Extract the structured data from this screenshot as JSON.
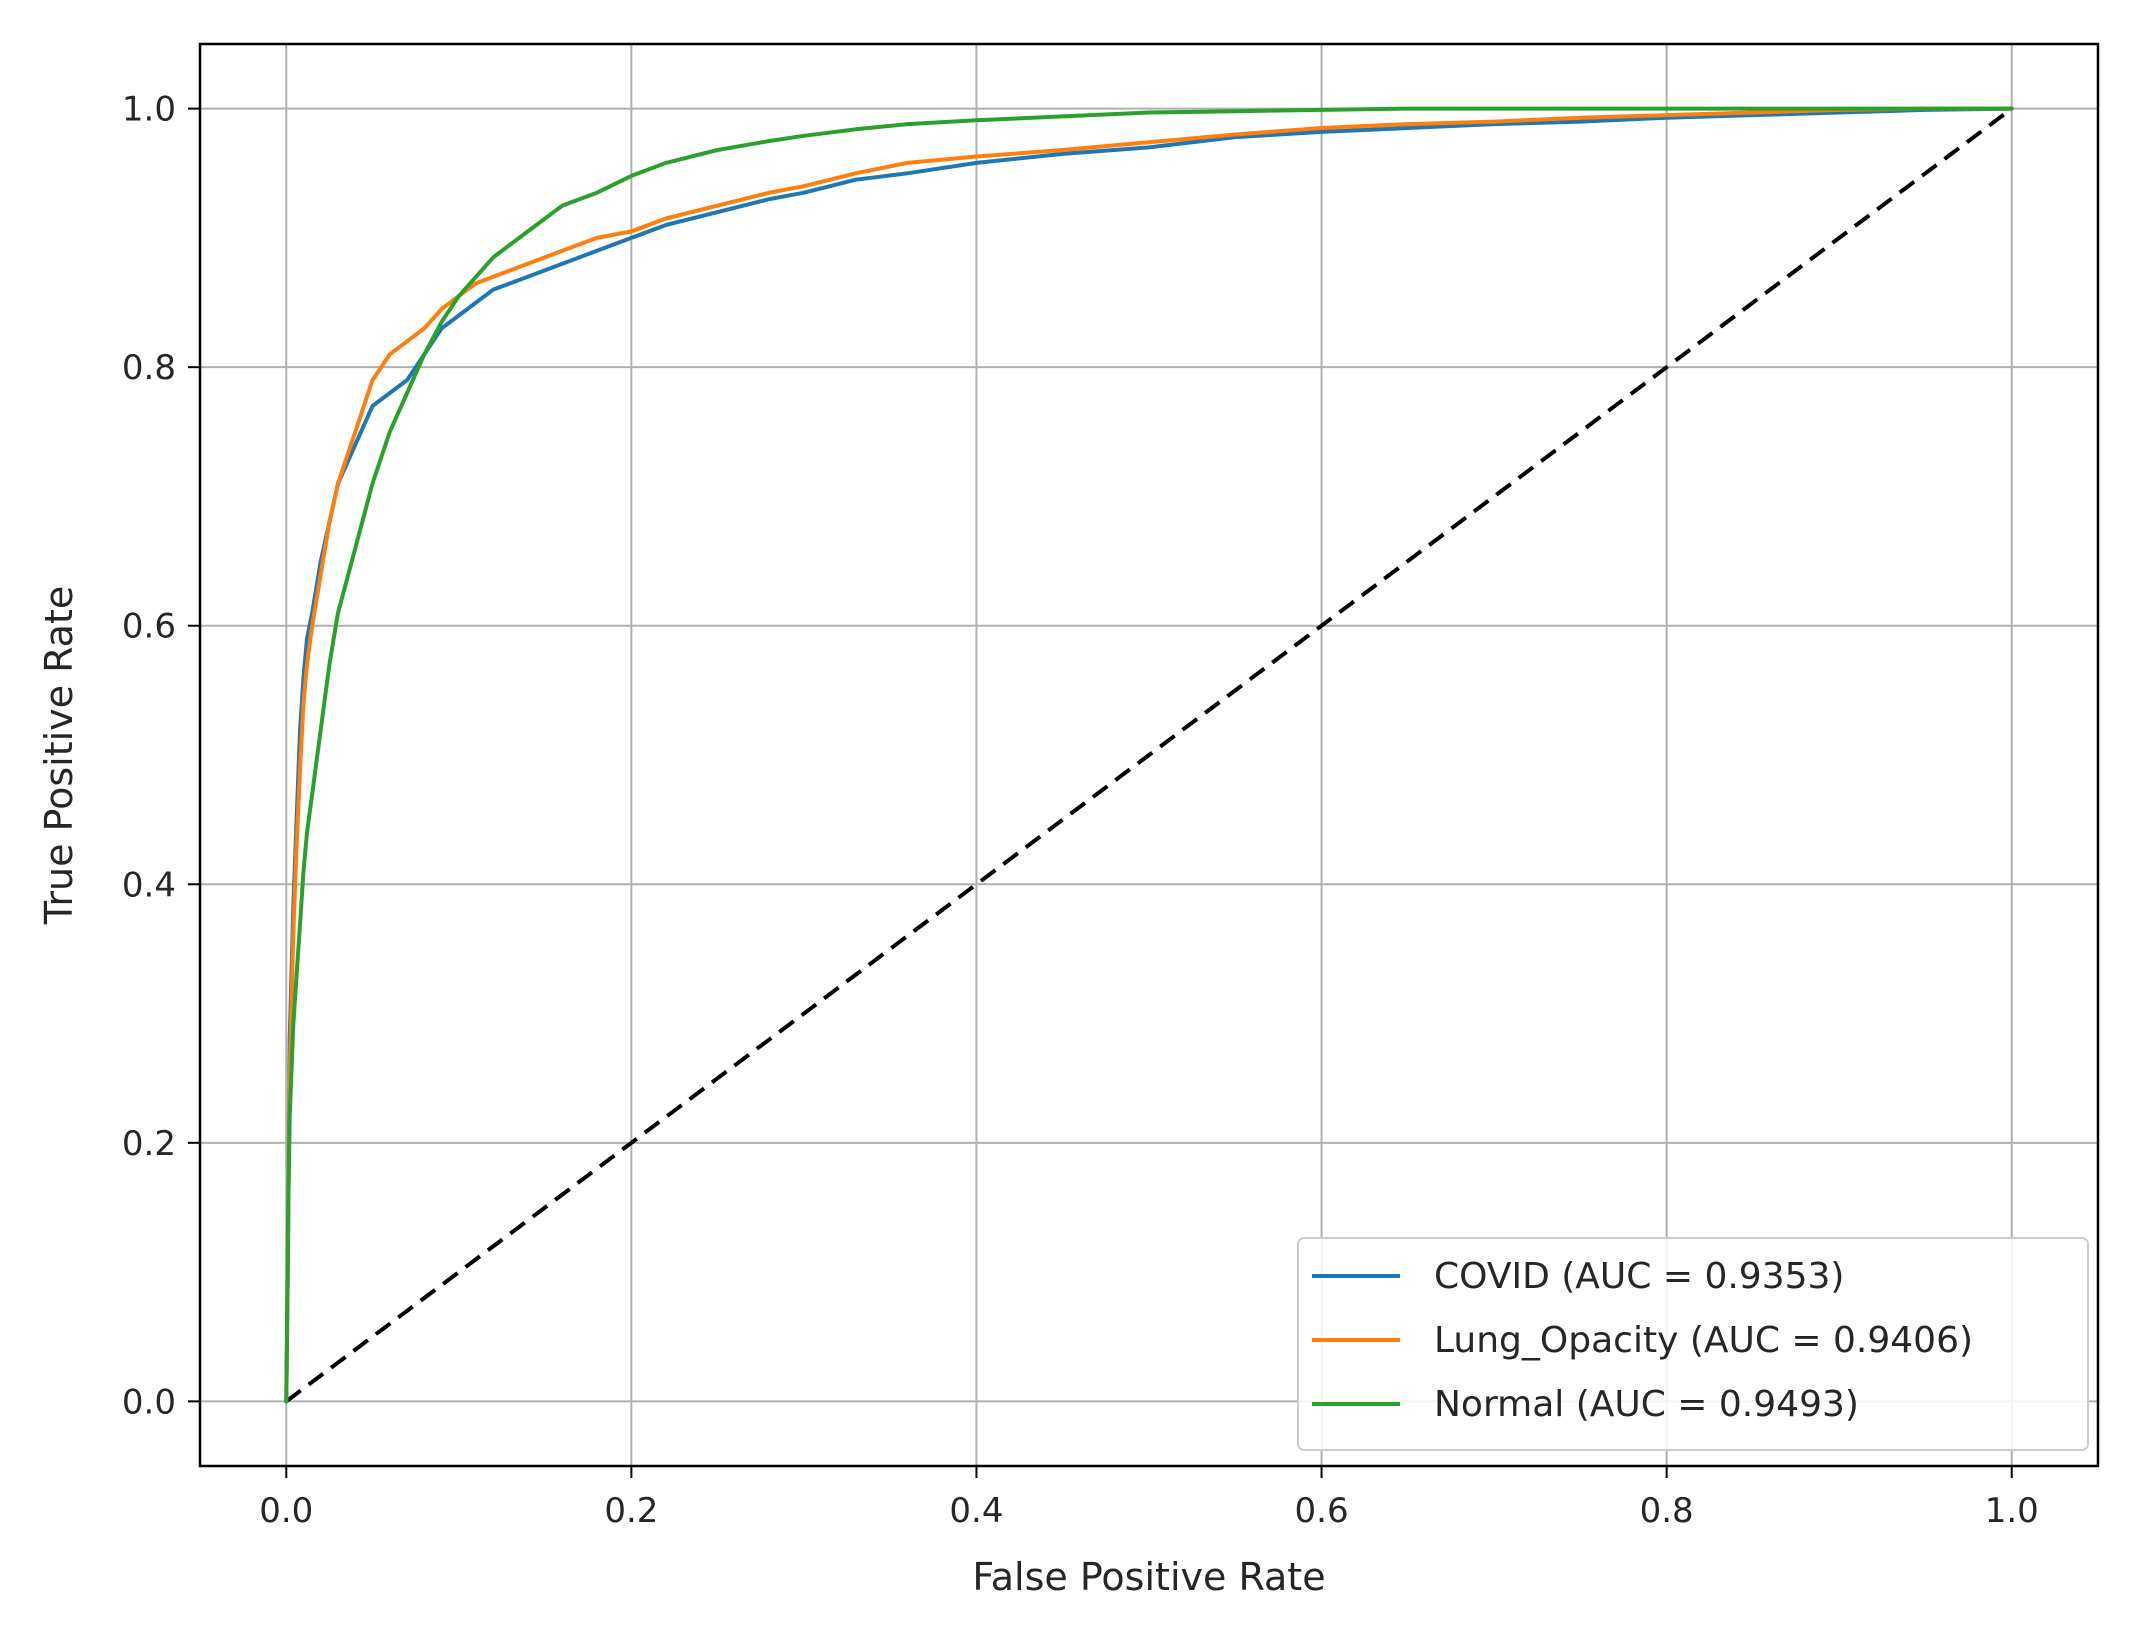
{
  "chart_data": {
    "type": "line",
    "title": "",
    "xlabel": "False Positive Rate",
    "ylabel": "True Positive Rate",
    "xlim": [
      -0.05,
      1.05
    ],
    "ylim": [
      -0.05,
      1.05
    ],
    "xticks": [
      0.0,
      0.2,
      0.4,
      0.6,
      0.8,
      1.0
    ],
    "yticks": [
      0.0,
      0.2,
      0.4,
      0.6,
      0.8,
      1.0
    ],
    "xtick_labels": [
      "0.0",
      "0.2",
      "0.4",
      "0.6",
      "0.8",
      "1.0"
    ],
    "ytick_labels": [
      "0.0",
      "0.2",
      "0.4",
      "0.6",
      "0.8",
      "1.0"
    ],
    "grid": true,
    "legend_position": "lower-right",
    "series": [
      {
        "name": "COVID (AUC = 0.9353)",
        "color": "#1f77b4",
        "x": [
          0.0,
          0.001,
          0.002,
          0.004,
          0.006,
          0.008,
          0.01,
          0.012,
          0.015,
          0.02,
          0.025,
          0.03,
          0.04,
          0.05,
          0.06,
          0.07,
          0.08,
          0.09,
          0.1,
          0.11,
          0.12,
          0.14,
          0.16,
          0.18,
          0.2,
          0.22,
          0.25,
          0.28,
          0.3,
          0.33,
          0.36,
          0.4,
          0.45,
          0.5,
          0.55,
          0.6,
          0.65,
          0.7,
          0.75,
          0.8,
          0.85,
          0.9,
          0.95,
          1.0
        ],
        "y": [
          0.0,
          0.11,
          0.28,
          0.38,
          0.45,
          0.52,
          0.56,
          0.59,
          0.61,
          0.65,
          0.68,
          0.71,
          0.74,
          0.77,
          0.78,
          0.79,
          0.81,
          0.83,
          0.84,
          0.85,
          0.86,
          0.87,
          0.88,
          0.89,
          0.9,
          0.91,
          0.92,
          0.93,
          0.935,
          0.945,
          0.95,
          0.958,
          0.965,
          0.97,
          0.978,
          0.982,
          0.985,
          0.988,
          0.99,
          0.993,
          0.995,
          0.997,
          0.999,
          1.0
        ]
      },
      {
        "name": "Lung_Opacity (AUC = 0.9406)",
        "color": "#ff7f0e",
        "x": [
          0.0,
          0.001,
          0.002,
          0.004,
          0.006,
          0.008,
          0.01,
          0.012,
          0.015,
          0.02,
          0.025,
          0.03,
          0.04,
          0.05,
          0.06,
          0.07,
          0.08,
          0.09,
          0.1,
          0.11,
          0.12,
          0.14,
          0.16,
          0.18,
          0.2,
          0.22,
          0.25,
          0.28,
          0.3,
          0.33,
          0.36,
          0.4,
          0.45,
          0.5,
          0.55,
          0.6,
          0.65,
          0.7,
          0.75,
          0.8,
          0.85,
          0.9,
          0.95,
          1.0
        ],
        "y": [
          0.0,
          0.13,
          0.25,
          0.36,
          0.43,
          0.49,
          0.54,
          0.57,
          0.6,
          0.64,
          0.68,
          0.71,
          0.75,
          0.79,
          0.81,
          0.82,
          0.83,
          0.845,
          0.855,
          0.865,
          0.87,
          0.88,
          0.89,
          0.9,
          0.905,
          0.915,
          0.925,
          0.935,
          0.94,
          0.95,
          0.958,
          0.963,
          0.968,
          0.974,
          0.98,
          0.985,
          0.988,
          0.99,
          0.993,
          0.995,
          0.997,
          0.999,
          1.0,
          1.0
        ]
      },
      {
        "name": "Normal (AUC = 0.9493)",
        "color": "#2ca02c",
        "x": [
          0.0,
          0.001,
          0.002,
          0.004,
          0.006,
          0.008,
          0.01,
          0.012,
          0.015,
          0.02,
          0.025,
          0.03,
          0.04,
          0.05,
          0.06,
          0.07,
          0.08,
          0.09,
          0.1,
          0.11,
          0.12,
          0.14,
          0.16,
          0.18,
          0.2,
          0.22,
          0.25,
          0.28,
          0.3,
          0.33,
          0.36,
          0.4,
          0.45,
          0.5,
          0.55,
          0.6,
          0.65,
          0.7,
          0.75,
          0.8,
          0.85,
          0.9,
          0.95,
          1.0
        ],
        "y": [
          0.0,
          0.14,
          0.22,
          0.29,
          0.33,
          0.37,
          0.41,
          0.44,
          0.47,
          0.52,
          0.57,
          0.61,
          0.66,
          0.71,
          0.75,
          0.78,
          0.81,
          0.835,
          0.855,
          0.87,
          0.885,
          0.905,
          0.925,
          0.935,
          0.948,
          0.958,
          0.968,
          0.975,
          0.979,
          0.984,
          0.988,
          0.991,
          0.994,
          0.997,
          0.998,
          0.999,
          1.0,
          1.0,
          1.0,
          1.0,
          1.0,
          1.0,
          1.0,
          1.0
        ]
      }
    ],
    "reference_line": {
      "color": "#000000",
      "x": [
        0.0,
        1.0
      ],
      "y": [
        0.0,
        1.0
      ]
    }
  }
}
